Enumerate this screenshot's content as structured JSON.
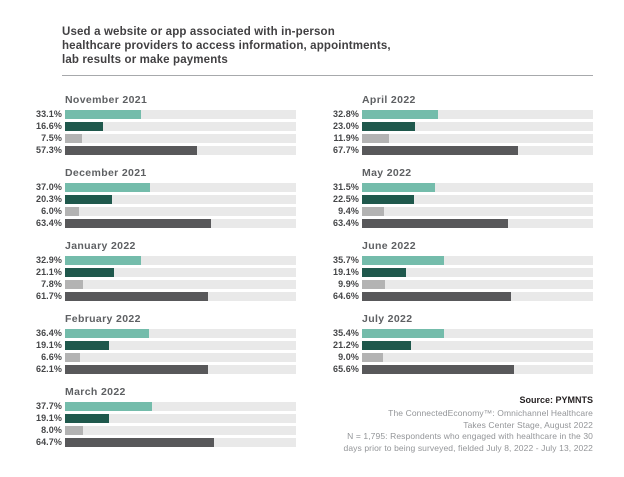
{
  "header": {
    "title": "Used a website or app associated with in-person healthcare providers to access information, appointments, lab results or make payments"
  },
  "chart_data": {
    "type": "bar",
    "orientation": "horizontal",
    "unit": "%",
    "xlim": [
      0,
      100
    ],
    "grid": false,
    "legend_position": "none",
    "track_color": "#e9e9e9",
    "series_colors": [
      "#74bcab",
      "#1f584c",
      "#b3b3b3",
      "#58585a"
    ],
    "groups": [
      {
        "label": "November 2021",
        "column": "left",
        "values": [
          33.1,
          16.6,
          7.5,
          57.3
        ]
      },
      {
        "label": "December 2021",
        "column": "left",
        "values": [
          37.0,
          20.3,
          6.0,
          63.4
        ]
      },
      {
        "label": "January 2022",
        "column": "left",
        "values": [
          32.9,
          21.1,
          7.8,
          61.7
        ]
      },
      {
        "label": "February 2022",
        "column": "left",
        "values": [
          36.4,
          19.1,
          6.6,
          62.1
        ]
      },
      {
        "label": "March 2022",
        "column": "left",
        "values": [
          37.7,
          19.1,
          8.0,
          64.7
        ]
      },
      {
        "label": "April 2022",
        "column": "right",
        "values": [
          32.8,
          23.0,
          11.9,
          67.7
        ]
      },
      {
        "label": "May 2022",
        "column": "right",
        "values": [
          31.5,
          22.5,
          9.4,
          63.4
        ]
      },
      {
        "label": "June 2022",
        "column": "right",
        "values": [
          35.7,
          19.1,
          9.9,
          64.6
        ]
      },
      {
        "label": "July 2022",
        "column": "right",
        "values": [
          35.4,
          21.2,
          9.0,
          65.6
        ]
      }
    ]
  },
  "source": {
    "label": "Source: PYMNTS",
    "lines": [
      "The ConnectedEconomy™: Omnichannel Healthcare",
      "Takes Center Stage, August 2022",
      "N = 1,795: Respondents who engaged with healthcare in the 30",
      "days prior to being surveyed, fielded July 8, 2022 - July 13, 2022"
    ]
  }
}
